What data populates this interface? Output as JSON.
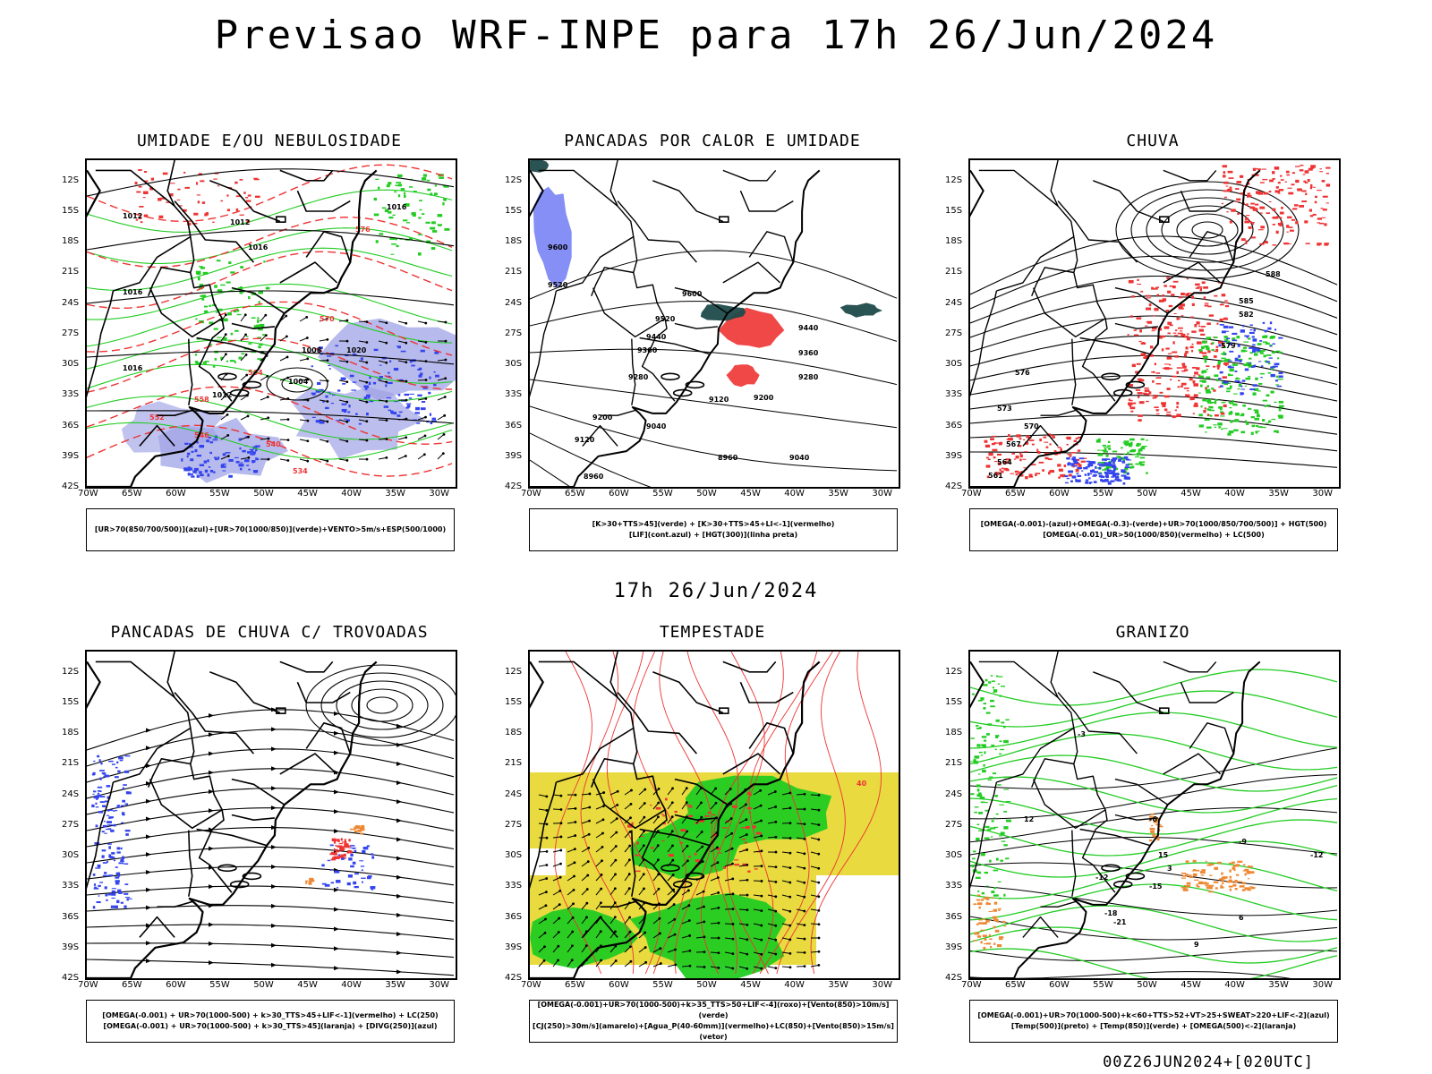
{
  "page": {
    "title": "Previsao WRF-INPE  para 17h 26/Jun/2024",
    "mid_title": "17h 26/Jun/2024",
    "footer": "00Z26JUN2024+[020UTC]"
  },
  "axes": {
    "lat_labels": [
      "12S",
      "15S",
      "18S",
      "21S",
      "24S",
      "27S",
      "30S",
      "33S",
      "36S",
      "39S",
      "42S"
    ],
    "lon_labels": [
      "70W",
      "65W",
      "60W",
      "55W",
      "50W",
      "45W",
      "40W",
      "35W",
      "30W"
    ]
  },
  "colors": {
    "black": "#000000",
    "red": "#ee3333",
    "green": "#22cc22",
    "blue": "#3344ee",
    "lavender": "#9fa3e6",
    "yellow": "#e6d62a",
    "orange": "#ee8833",
    "darkteal": "#1f4a4a"
  },
  "panels": [
    {
      "id": "umidade",
      "title": "UMIDADE E/OU NEBULOSIDADE",
      "legend": [
        "[UR>70(850/700/500)](azul)+[UR>70(1000/850)](verde)+VENTO>5m/s+ESP(500/1000)"
      ],
      "contour_labels": [
        "1012",
        "1012",
        "1016",
        "1016",
        "1016",
        "1020",
        "1004",
        "1008",
        "1012",
        "1016",
        "576",
        "570",
        "564",
        "558",
        "552",
        "546",
        "540",
        "534"
      ]
    },
    {
      "id": "pancadas_calor",
      "title": "PANCADAS POR CALOR E UMIDADE",
      "legend": [
        "[K>30+TTS>45](verde) + [K>30+TTS>45+LI<-1](vermelho)",
        "[LIF](cont.azul) + [HGT(300)](linha preta)"
      ],
      "contour_labels": [
        "9600",
        "9600",
        "9520",
        "9520",
        "9440",
        "9440",
        "9360",
        "9360",
        "9280",
        "9280",
        "9200",
        "9200",
        "9120",
        "9120",
        "9040",
        "9040",
        "8960",
        "8960"
      ]
    },
    {
      "id": "chuva",
      "title": "CHUVA",
      "legend": [
        "[OMEGA(-0.001)-(azul)+OMEGA(-0.3)-(verde)+UR>70(1000/850/700/500)] + HGT(500)",
        "[OMEGA(-0.01)_UR>50(1000/850)(vermelho) + LC(500)"
      ],
      "contour_labels": [
        "588",
        "585",
        "582",
        "579",
        "576",
        "573",
        "570",
        "567",
        "564",
        "561"
      ]
    },
    {
      "id": "pancadas_trovoadas",
      "title": "PANCADAS DE CHUVA C/ TROVOADAS",
      "legend": [
        "[OMEGA(-0.001) + UR>70(1000-500) + k>30_TTS>45+LIF<-1](vermelho) + LC(250)",
        "[OMEGA(-0.001) + UR>70(1000-500) + k>30_TTS>45](laranja) + [DIVG(250)](azul)"
      ],
      "contour_labels": []
    },
    {
      "id": "tempestade",
      "title": "TEMPESTADE",
      "legend": [
        "[OMEGA(-0.001)+UR>70(1000-500)+k>35_TTS>50+LIF<-4](roxo)+[Vento(850)>10m/s](verde)",
        "[CJ(250)>30m/s](amarelo)+[Agua_P(40-60mm)](vermelho)+LC(850)+[Vento(850)>15m/s](vetor)"
      ],
      "contour_labels": [
        "40"
      ]
    },
    {
      "id": "granizo",
      "title": "GRANIZO",
      "legend": [
        "[OMEGA(-0.001)+UR>70(1000-500)+k<60+TTS>52+VT>25+SWEAT>220+LIF<-2](azul)",
        "[Temp(500)](preto) + [Temp(850)](verde) + [OMEGA(500)<-2](laranja)"
      ],
      "contour_labels": [
        "-3",
        "-6",
        "-9",
        "-12",
        "-15",
        "-18",
        "-21",
        "12",
        "15",
        "-12",
        "3",
        "6",
        "9"
      ]
    }
  ]
}
